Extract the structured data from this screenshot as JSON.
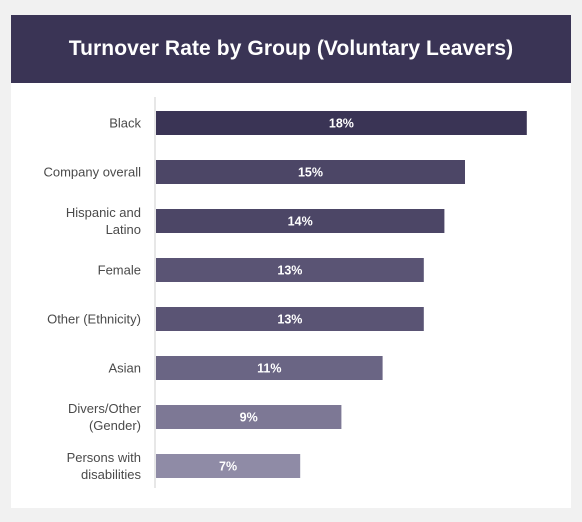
{
  "chart_data": {
    "type": "bar",
    "orientation": "horizontal",
    "title": "Turnover Rate by Group (Voluntary Leavers)",
    "categories": [
      "Black",
      "Company overall",
      "Hispanic and Latino",
      "Female",
      "Other (Ethnicity)",
      "Asian",
      "Divers/Other (Gender)",
      "Persons with disabilities"
    ],
    "category_lines": [
      [
        "Black"
      ],
      [
        "Company overall"
      ],
      [
        "Hispanic and",
        "Latino"
      ],
      [
        "Female"
      ],
      [
        "Other (Ethnicity)"
      ],
      [
        "Asian"
      ],
      [
        "Divers/Other",
        "(Gender)"
      ],
      [
        "Persons with",
        "disabilities"
      ]
    ],
    "values": [
      18,
      15,
      14,
      13,
      13,
      11,
      9,
      7
    ],
    "value_labels": [
      "18%",
      "15%",
      "14%",
      "13%",
      "13%",
      "11%",
      "9%",
      "7%"
    ],
    "unit": "%",
    "xlim": [
      0,
      19
    ],
    "grid": false,
    "legend": "none",
    "colors": [
      "#3a3455",
      "#4c4666",
      "#4c4666",
      "#5a5474",
      "#5a5474",
      "#6a6584",
      "#7d7895",
      "#8f8ba6"
    ]
  },
  "colors": {
    "header_bg": "#3a3455",
    "header_text": "#ffffff",
    "card_bg": "#ffffff",
    "page_bg": "#f1f1f1"
  }
}
